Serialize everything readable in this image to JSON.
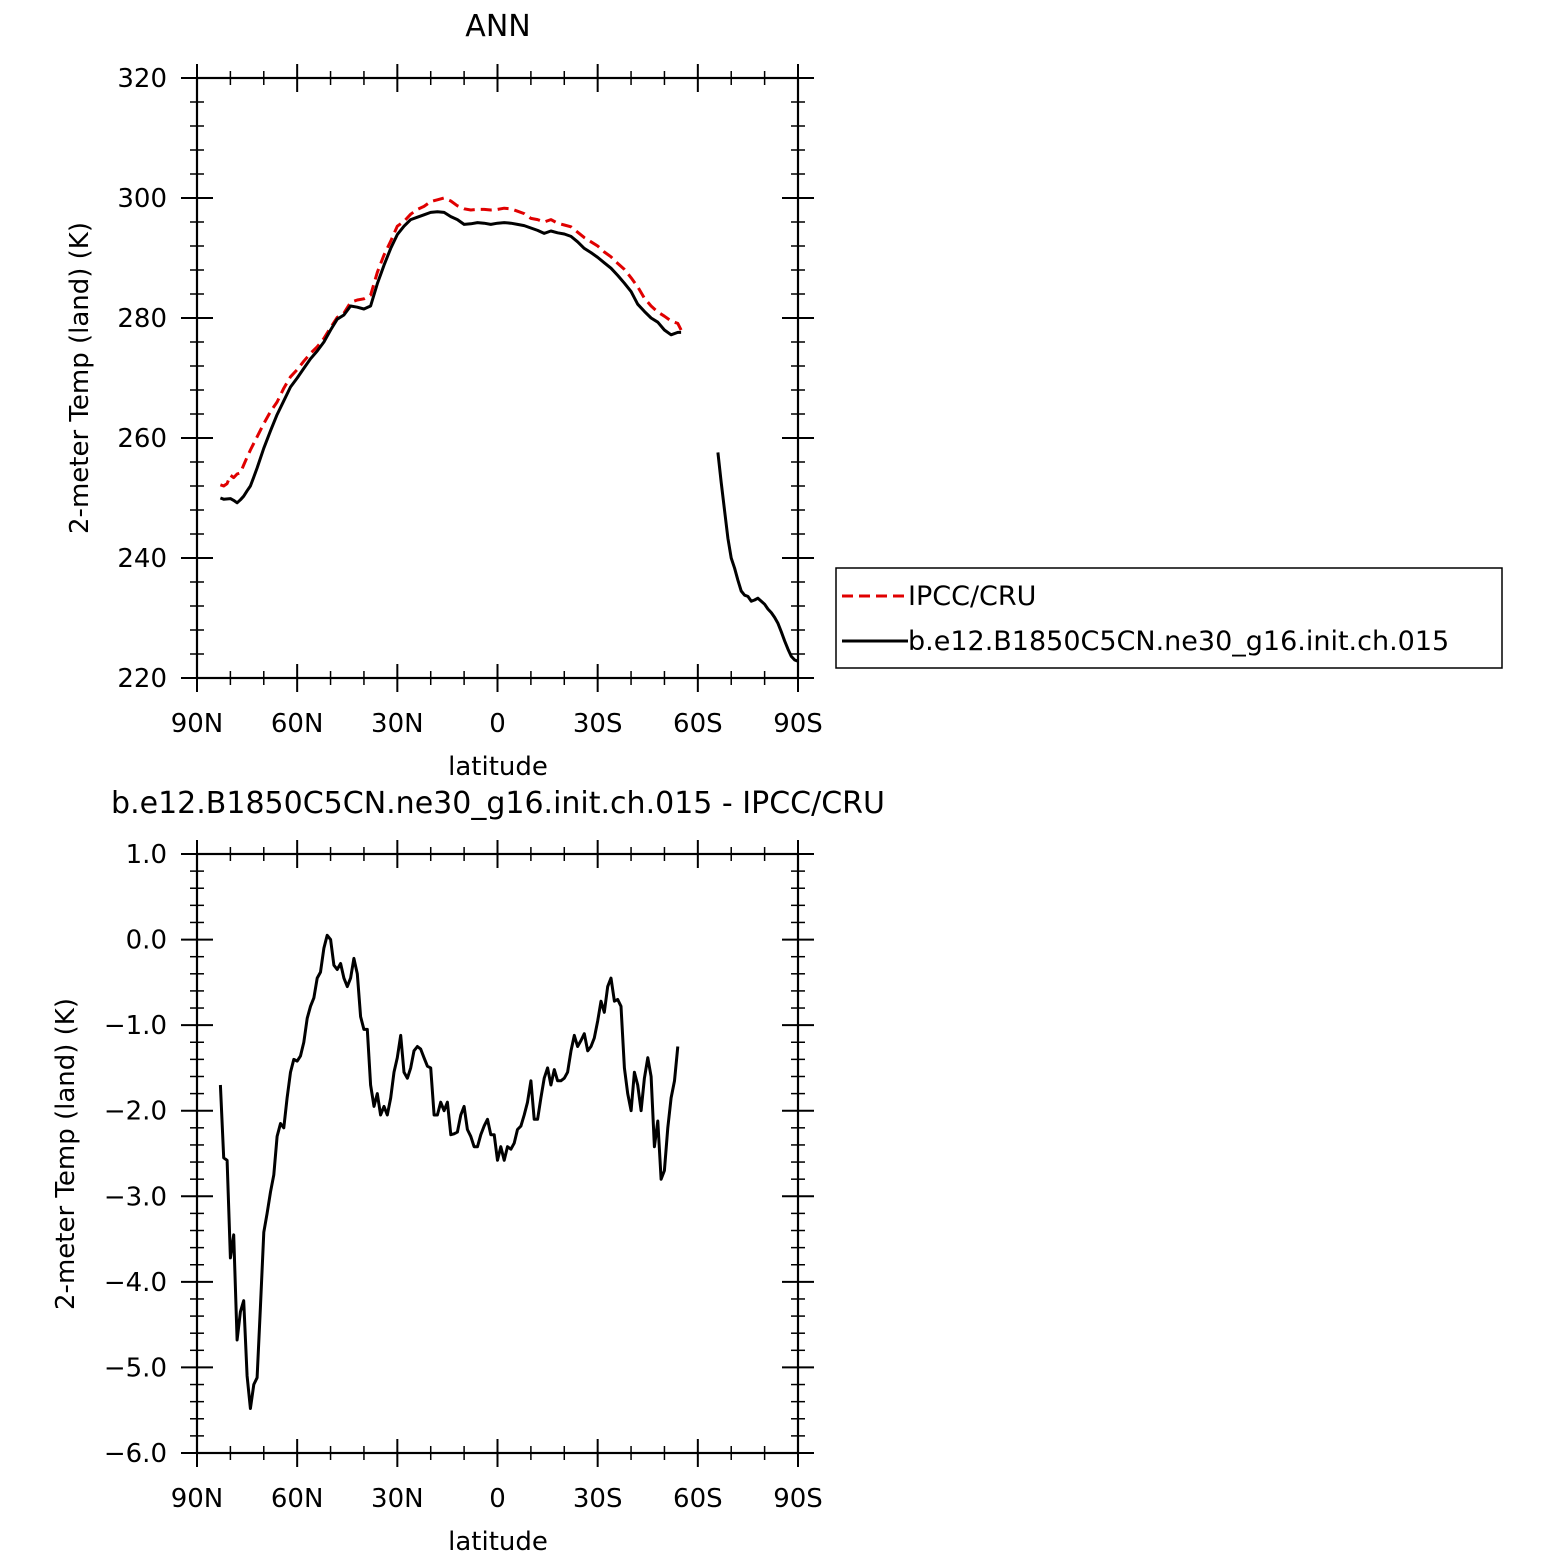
{
  "chart_data": [
    {
      "type": "line",
      "title": "ANN",
      "xlabel": "latitude",
      "ylabel": "2-meter Temp (land) (K)",
      "xlim": [
        90,
        -90
      ],
      "ylim": [
        220,
        320
      ],
      "x_ticks": [
        90,
        60,
        30,
        0,
        -30,
        -60,
        -90
      ],
      "x_tick_labels": [
        "90N",
        "60N",
        "30N",
        "0",
        "30S",
        "60S",
        "90S"
      ],
      "y_ticks": [
        220,
        240,
        260,
        280,
        300,
        320
      ],
      "y_tick_labels": [
        "220",
        "240",
        "260",
        "280",
        "300",
        "320"
      ],
      "legend": {
        "placement": "right"
      },
      "series": [
        {
          "name": "IPCC/CRU",
          "color": "#e00000",
          "dash": "dashed",
          "segments": [
            {
              "x": [
                83,
                82,
                81,
                80,
                79,
                78,
                77,
                76,
                75,
                74,
                72,
                70,
                68,
                66,
                64,
                62,
                60,
                58,
                56,
                54,
                52,
                50,
                48,
                46,
                44,
                42,
                40,
                38,
                36,
                34,
                32,
                30,
                28,
                26,
                24,
                22,
                20,
                18,
                16,
                14,
                12,
                10,
                8,
                6,
                4,
                2,
                0,
                -2,
                -4,
                -6,
                -8,
                -10,
                -12,
                -14,
                -16,
                -18,
                -20,
                -22,
                -24,
                -26,
                -28,
                -30,
                -32,
                -34,
                -36,
                -38,
                -40,
                -42,
                -44,
                -46,
                -48,
                -50,
                -52,
                -54,
                -55
              ],
              "y": [
                252.2,
                252.0,
                252.4,
                253.8,
                253.4,
                254.0,
                254.2,
                255.5,
                256.8,
                258.0,
                260.2,
                262.4,
                264.4,
                266.0,
                268.3,
                270.2,
                271.4,
                272.8,
                274.1,
                275.2,
                276.6,
                278.4,
                280.1,
                280.8,
                282.6,
                283.0,
                283.2,
                283.8,
                287.6,
                290.5,
                292.8,
                295.3,
                296.1,
                297.3,
                298.1,
                298.6,
                299.4,
                299.7,
                300.0,
                299.5,
                298.7,
                298.2,
                298.0,
                298.1,
                298.1,
                298.0,
                298.1,
                298.3,
                298.2,
                297.8,
                297.4,
                296.6,
                296.4,
                296.0,
                296.4,
                295.8,
                295.5,
                295.2,
                294.3,
                293.4,
                292.7,
                292.0,
                291.0,
                290.2,
                289.1,
                288.1,
                286.7,
                285.2,
                283.3,
                282.0,
                281.0,
                280.3,
                279.5,
                279.1,
                278.0
              ]
            }
          ]
        },
        {
          "name": "b.e12.B1850C5CN.ne30_g16.init.ch.015",
          "color": "#000000",
          "dash": "solid",
          "segments": [
            {
              "x": [
                83,
                82,
                80,
                79,
                78,
                77,
                76,
                75,
                74,
                73,
                72,
                70,
                68,
                66,
                64,
                62,
                60,
                58,
                56,
                54,
                52,
                50,
                48,
                46,
                44,
                42,
                40,
                38,
                36,
                34,
                32,
                30,
                28,
                26,
                24,
                22,
                20,
                18,
                16,
                14,
                12,
                10,
                8,
                6,
                4,
                2,
                0,
                -2,
                -4,
                -6,
                -8,
                -10,
                -12,
                -14,
                -16,
                -18,
                -20,
                -22,
                -24,
                -26,
                -28,
                -30,
                -32,
                -34,
                -36,
                -38,
                -40,
                -42,
                -44,
                -46,
                -48,
                -50,
                -52,
                -54,
                -55
              ],
              "y": [
                250.0,
                249.8,
                249.9,
                249.6,
                249.2,
                249.7,
                250.3,
                251.2,
                252.0,
                253.5,
                255.0,
                258.3,
                261.2,
                263.9,
                266.2,
                268.5,
                270.0,
                271.6,
                273.2,
                274.5,
                276.0,
                278.0,
                279.8,
                280.5,
                282.0,
                281.8,
                281.5,
                282.0,
                285.7,
                288.8,
                291.6,
                293.9,
                295.3,
                296.4,
                296.8,
                297.2,
                297.6,
                297.7,
                297.6,
                296.9,
                296.4,
                295.6,
                295.7,
                295.9,
                295.8,
                295.6,
                295.8,
                295.9,
                295.8,
                295.6,
                295.4,
                295.0,
                294.6,
                294.1,
                294.5,
                294.2,
                294.0,
                293.6,
                292.7,
                291.6,
                290.9,
                290.1,
                289.2,
                288.3,
                287.1,
                285.8,
                284.4,
                282.3,
                281.1,
                280.0,
                279.3,
                278.0,
                277.2,
                277.6,
                277.6
              ]
            },
            {
              "x": [
                -66,
                -67,
                -68,
                -69,
                -70,
                -71,
                -72,
                -73,
                -74,
                -75,
                -76,
                -77,
                -78,
                -79,
                -80,
                -81,
                -82,
                -83,
                -84,
                -85,
                -86,
                -87,
                -88,
                -89,
                -90
              ],
              "y": [
                257.6,
                252.6,
                248.0,
                243.3,
                240.0,
                238.3,
                236.3,
                234.5,
                233.8,
                233.6,
                232.8,
                233.0,
                233.3,
                232.8,
                232.3,
                231.5,
                230.9,
                230.1,
                229.1,
                227.7,
                226.2,
                224.8,
                223.6,
                223.0,
                222.8
              ]
            }
          ]
        }
      ],
      "legend_entries": [
        "IPCC/CRU",
        "b.e12.B1850C5CN.ne30_g16.init.ch.015"
      ]
    },
    {
      "type": "line",
      "title": "b.e12.B1850C5CN.ne30_g16.init.ch.015 - IPCC/CRU",
      "xlabel": "latitude",
      "ylabel": "2-meter Temp (land) (K)",
      "xlim": [
        90,
        -90
      ],
      "ylim": [
        -6.0,
        1.0
      ],
      "x_ticks": [
        90,
        60,
        30,
        0,
        -30,
        -60,
        -90
      ],
      "x_tick_labels": [
        "90N",
        "60N",
        "30N",
        "0",
        "30S",
        "60S",
        "90S"
      ],
      "y_ticks": [
        1.0,
        0.0,
        -1.0,
        -2.0,
        -3.0,
        -4.0,
        -5.0,
        -6.0
      ],
      "y_tick_labels": [
        "1.0",
        "0.0",
        "−1.0",
        "−2.0",
        "−3.0",
        "−4.0",
        "−5.0",
        "−6.0"
      ],
      "series": [
        {
          "color": "#000000",
          "x": [
            83,
            82,
            81,
            80,
            79,
            78,
            77,
            76,
            75,
            74,
            73,
            72,
            71,
            70,
            69,
            68,
            67,
            66,
            65,
            64,
            63,
            62,
            61,
            60,
            59,
            58,
            57,
            56,
            55,
            54,
            53,
            52,
            51,
            50,
            49,
            48,
            47,
            46,
            45,
            44,
            43,
            42,
            41,
            40,
            39,
            38,
            37,
            36,
            35,
            34,
            33,
            32,
            31,
            30,
            29,
            28,
            27,
            26,
            25,
            24,
            23,
            22,
            21,
            20,
            19,
            18,
            17,
            16,
            15,
            14,
            13,
            12,
            11,
            10,
            9,
            8,
            7,
            6,
            5,
            4,
            3,
            2,
            1,
            0,
            -1,
            -2,
            -3,
            -4,
            -5,
            -6,
            -7,
            -8,
            -9,
            -10,
            -11,
            -12,
            -13,
            -14,
            -15,
            -16,
            -17,
            -18,
            -19,
            -20,
            -21,
            -22,
            -23,
            -24,
            -25,
            -26,
            -27,
            -28,
            -29,
            -30,
            -31,
            -32,
            -33,
            -34,
            -35,
            -36,
            -37,
            -38,
            -39,
            -40,
            -41,
            -42,
            -43,
            -44,
            -45,
            -46,
            -47,
            -48,
            -49,
            -50,
            -51,
            -52,
            -53,
            -54
          ],
          "y": [
            -1.7,
            -2.55,
            -2.58,
            -3.72,
            -3.45,
            -4.68,
            -4.35,
            -4.22,
            -5.1,
            -5.48,
            -5.2,
            -5.12,
            -4.3,
            -3.42,
            -3.2,
            -2.95,
            -2.75,
            -2.3,
            -2.15,
            -2.2,
            -1.85,
            -1.55,
            -1.4,
            -1.42,
            -1.36,
            -1.2,
            -0.92,
            -0.78,
            -0.68,
            -0.45,
            -0.38,
            -0.1,
            0.05,
            0.0,
            -0.3,
            -0.35,
            -0.28,
            -0.45,
            -0.55,
            -0.45,
            -0.22,
            -0.4,
            -0.9,
            -1.05,
            -1.05,
            -1.7,
            -1.95,
            -1.8,
            -2.05,
            -1.95,
            -2.05,
            -1.85,
            -1.55,
            -1.38,
            -1.12,
            -1.55,
            -1.62,
            -1.5,
            -1.3,
            -1.25,
            -1.28,
            -1.38,
            -1.48,
            -1.5,
            -2.05,
            -2.05,
            -1.9,
            -2.0,
            -1.9,
            -2.28,
            -2.27,
            -2.25,
            -2.05,
            -1.95,
            -2.22,
            -2.3,
            -2.42,
            -2.42,
            -2.28,
            -2.18,
            -2.1,
            -2.28,
            -2.28,
            -2.58,
            -2.42,
            -2.58,
            -2.42,
            -2.45,
            -2.38,
            -2.22,
            -2.18,
            -2.05,
            -1.9,
            -1.65,
            -2.1,
            -2.1,
            -1.85,
            -1.62,
            -1.5,
            -1.7,
            -1.52,
            -1.65,
            -1.65,
            -1.62,
            -1.55,
            -1.3,
            -1.12,
            -1.25,
            -1.18,
            -1.1,
            -1.3,
            -1.25,
            -1.15,
            -0.95,
            -0.72,
            -0.85,
            -0.55,
            -0.45,
            -0.72,
            -0.7,
            -0.78,
            -1.5,
            -1.8,
            -2.0,
            -1.55,
            -1.7,
            -2.0,
            -1.62,
            -1.38,
            -1.6,
            -2.42,
            -2.12,
            -2.8,
            -2.7,
            -2.2,
            -1.85,
            -1.65,
            -1.25
          ]
        }
      ]
    }
  ]
}
